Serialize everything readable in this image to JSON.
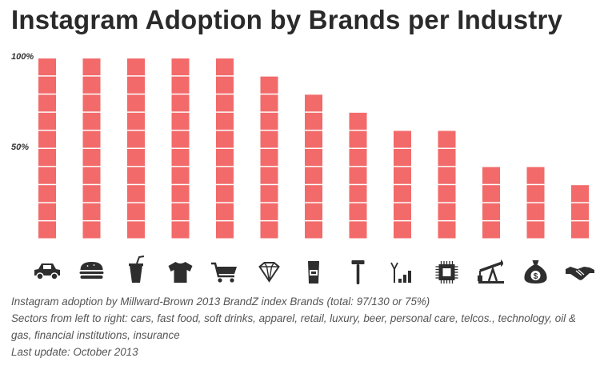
{
  "chart_data": {
    "type": "bar",
    "title": "Instagram Adoption by Brands per Industry",
    "categories": [
      "cars",
      "fast food",
      "soft drinks",
      "apparel",
      "retail",
      "luxury",
      "beer",
      "personal care",
      "telcos.",
      "technology",
      "oil & gas",
      "financial institutions",
      "insurance"
    ],
    "values": [
      100,
      100,
      100,
      100,
      100,
      90,
      80,
      70,
      60,
      60,
      40,
      40,
      30
    ],
    "y_tick_labels": [
      "100%",
      "50%"
    ],
    "y_ticks": [
      100,
      50
    ],
    "ylim": [
      0,
      100
    ],
    "xlabel": "",
    "ylabel": "",
    "bar_color": "#f26a6a",
    "icon_color": "#2e2e2e",
    "icons": [
      "car-icon",
      "burger-icon",
      "soft-drink-icon",
      "tshirt-icon",
      "shopping-cart-icon",
      "diamond-icon",
      "beer-icon",
      "razor-icon",
      "signal-icon",
      "chip-icon",
      "oil-pump-icon",
      "money-bag-icon",
      "handshake-icon"
    ]
  },
  "notes": {
    "line1": "Instagram adoption by Millward-Brown 2013 BrandZ index Brands (total: 97/130 or 75%)",
    "line2": "Sectors from left to right: cars, fast food, soft drinks, apparel, retail, luxury, beer, personal care, telcos., technology, oil & gas, financial institutions, insurance",
    "line3": "Last update: October 2013"
  }
}
